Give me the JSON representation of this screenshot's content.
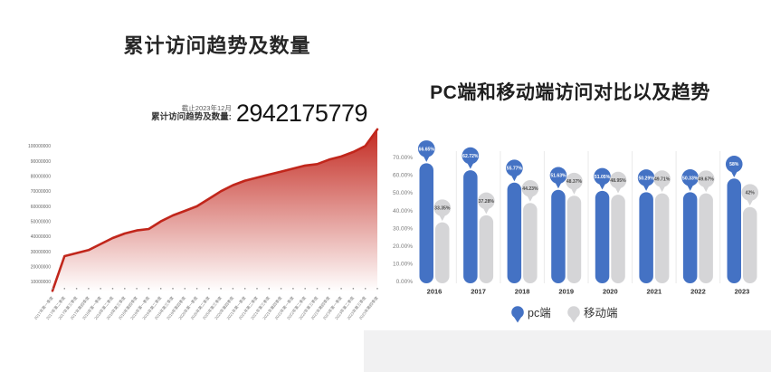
{
  "left_chart": {
    "title": "累计访问趋势及数量",
    "stat": {
      "asof": "截止2023年12月",
      "label": "累计访问趋势及数量:",
      "value": "2942175779"
    },
    "chart_data": {
      "type": "area",
      "title": "累计访问趋势及数量",
      "x": [
        "2017年第一季度",
        "2017年第二季度",
        "2017年第三季度",
        "2017年第四季度",
        "2018年第一季度",
        "2018年第二季度",
        "2018年第三季度",
        "2018年第四季度",
        "2019年第一季度",
        "2019年第二季度",
        "2019年第三季度",
        "2019年第四季度",
        "2020年第一季度",
        "2020年第二季度",
        "2020年第三季度",
        "2020年第四季度",
        "2021年第一季度",
        "2021年第二季度",
        "2021年第三季度",
        "2021年第四季度",
        "2022年第一季度",
        "2022年第二季度",
        "2022年第三季度",
        "2022年第四季度",
        "2023年第一季度",
        "2023年第二季度",
        "2023年第三季度",
        "2023年第四季度"
      ],
      "values": [
        4000000,
        27000000,
        29000000,
        31000000,
        35000000,
        39000000,
        42000000,
        44000000,
        45000000,
        50000000,
        54000000,
        57000000,
        60000000,
        65000000,
        70000000,
        74000000,
        77000000,
        79000000,
        81000000,
        83000000,
        85000000,
        87000000,
        88000000,
        91000000,
        93000000,
        96000000,
        100000000,
        111000000
      ],
      "yticks": [
        "100000000",
        "90000000",
        "80000000",
        "70000000",
        "60000000",
        "50000000",
        "40000000",
        "30000000",
        "20000000",
        "10000000"
      ],
      "ylim": [
        10000000,
        100000000
      ],
      "grid": "off",
      "line_color": "#c1261b",
      "fill_top_color": "#c32a21",
      "fill_bottom_color": "#ffffff"
    }
  },
  "right_chart": {
    "title": "PC端和移动端访问对比以及趋势",
    "chart_data": {
      "type": "bar",
      "title": "PC端和移动端访问对比以及趋势",
      "categories": [
        "2016",
        "2017",
        "2018",
        "2019",
        "2020",
        "2021",
        "2022",
        "2023"
      ],
      "series": [
        {
          "name": "pc端",
          "color": "#4472c4",
          "label_text_color": "#ffffff",
          "values": [
            66.65,
            62.72,
            55.77,
            51.63,
            51.05,
            50.29,
            50.33,
            58
          ],
          "labels": [
            "66.65%",
            "62.72%",
            "55.77%",
            "51.63%",
            "51.05%",
            "50.29%",
            "50.33%",
            "58%"
          ]
        },
        {
          "name": "移动端",
          "color": "#d5d5d7",
          "label_text_color": "#4d4d4d",
          "values": [
            33.35,
            37.28,
            44.23,
            48.37,
            48.95,
            49.71,
            49.67,
            42
          ],
          "labels": [
            "33.35%",
            "37.28%",
            "44.23%",
            "48.37%",
            "48.95%",
            "49.71%",
            "49.67%",
            "42%"
          ]
        }
      ],
      "yticks": [
        "70.00%",
        "60.00%",
        "50.00%",
        "40.00%",
        "30.00%",
        "20.00%",
        "10.00%",
        "0.00%"
      ],
      "ylim": [
        0,
        70
      ],
      "legend_position": "bottom",
      "grid": "off"
    }
  }
}
